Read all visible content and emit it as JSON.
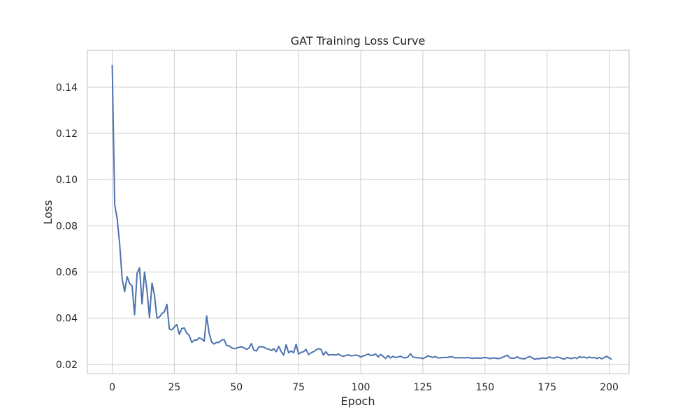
{
  "chart_data": {
    "type": "line",
    "title": "GAT Training Loss Curve",
    "xlabel": "Epoch",
    "ylabel": "Loss",
    "xlim": [
      -10,
      208
    ],
    "ylim": [
      0.016,
      0.156
    ],
    "xticks": [
      0,
      25,
      50,
      75,
      100,
      125,
      150,
      175,
      200
    ],
    "xtick_labels": [
      "0",
      "25",
      "50",
      "75",
      "100",
      "125",
      "150",
      "175",
      "200"
    ],
    "yticks": [
      0.02,
      0.04,
      0.06,
      0.08,
      0.1,
      0.12,
      0.14
    ],
    "ytick_labels": [
      "0.02",
      "0.04",
      "0.06",
      "0.08",
      "0.10",
      "0.12",
      "0.14"
    ],
    "grid": true,
    "line_color": "#4c72b0",
    "series": [
      {
        "x_start": 0,
        "x_step": 1,
        "values": [
          0.1497,
          0.089,
          0.083,
          0.072,
          0.057,
          0.0515,
          0.058,
          0.055,
          0.054,
          0.0415,
          0.0595,
          0.0618,
          0.0462,
          0.06,
          0.052,
          0.0402,
          0.0552,
          0.05,
          0.04,
          0.0405,
          0.042,
          0.0428,
          0.046,
          0.0353,
          0.035,
          0.0362,
          0.0372,
          0.033,
          0.0355,
          0.0358,
          0.0335,
          0.0325,
          0.0295,
          0.0305,
          0.0305,
          0.0315,
          0.031,
          0.03,
          0.041,
          0.0335,
          0.0297,
          0.0288,
          0.0295,
          0.0295,
          0.0305,
          0.0308,
          0.0282,
          0.028,
          0.0272,
          0.0268,
          0.027,
          0.0274,
          0.0276,
          0.0272,
          0.0265,
          0.027,
          0.029,
          0.0262,
          0.0258,
          0.0276,
          0.0276,
          0.0275,
          0.0268,
          0.0266,
          0.026,
          0.0268,
          0.0255,
          0.0278,
          0.0255,
          0.024,
          0.0285,
          0.025,
          0.0258,
          0.025,
          0.0287,
          0.0245,
          0.0252,
          0.0255,
          0.0265,
          0.0242,
          0.025,
          0.0255,
          0.0262,
          0.0268,
          0.0265,
          0.024,
          0.0255,
          0.024,
          0.0242,
          0.0242,
          0.024,
          0.0245,
          0.0238,
          0.0235,
          0.0238,
          0.0242,
          0.0237,
          0.0238,
          0.024,
          0.0238,
          0.0232,
          0.0236,
          0.024,
          0.0245,
          0.0238,
          0.024,
          0.0245,
          0.0232,
          0.0243,
          0.0235,
          0.0225,
          0.0238,
          0.0228,
          0.0235,
          0.023,
          0.0232,
          0.0235,
          0.023,
          0.0228,
          0.0232,
          0.0246,
          0.0232,
          0.023,
          0.0228,
          0.0228,
          0.0225,
          0.023,
          0.0237,
          0.0234,
          0.023,
          0.0234,
          0.0228,
          0.0228,
          0.023,
          0.023,
          0.023,
          0.0233,
          0.0232,
          0.0228,
          0.0229,
          0.0228,
          0.0229,
          0.0228,
          0.023,
          0.0228,
          0.0226,
          0.0227,
          0.0228,
          0.0226,
          0.0228,
          0.023,
          0.0228,
          0.0225,
          0.0227,
          0.0228,
          0.0225,
          0.0226,
          0.023,
          0.0235,
          0.024,
          0.0228,
          0.0226,
          0.0227,
          0.0233,
          0.0226,
          0.0225,
          0.0224,
          0.023,
          0.0234,
          0.0228,
          0.0222,
          0.0225,
          0.0224,
          0.0228,
          0.0226,
          0.0227,
          0.0232,
          0.0228,
          0.0228,
          0.0232,
          0.023,
          0.0225,
          0.0223,
          0.023,
          0.0227,
          0.0225,
          0.023,
          0.0225,
          0.0233,
          0.023,
          0.0232,
          0.0227,
          0.0232,
          0.0228,
          0.023,
          0.0225,
          0.023,
          0.0224,
          0.023,
          0.0235,
          0.0228,
          0.0222
        ]
      }
    ]
  }
}
